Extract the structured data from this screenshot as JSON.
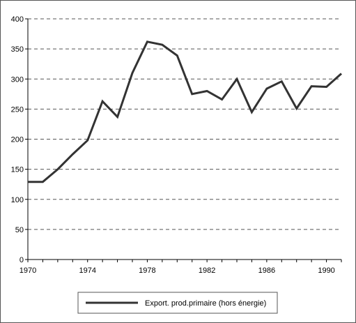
{
  "chart_data": {
    "type": "line",
    "title": "",
    "xlabel": "",
    "ylabel": "",
    "x": [
      1970,
      1971,
      1972,
      1973,
      1974,
      1975,
      1976,
      1977,
      1978,
      1979,
      1980,
      1981,
      1982,
      1983,
      1984,
      1985,
      1986,
      1987,
      1988,
      1989,
      1990,
      1991
    ],
    "series": [
      {
        "name": "Export. prod.primaire (hors énergie)",
        "values": [
          129,
          129,
          150,
          175,
          198,
          263,
          237,
          310,
          362,
          357,
          339,
          275,
          280,
          266,
          300,
          245,
          284,
          296,
          251,
          288,
          287,
          309
        ],
        "color": "#333333"
      }
    ],
    "xlim": [
      1970,
      1991
    ],
    "ylim": [
      0,
      400
    ],
    "x_tick_labels": [
      "1970",
      "1974",
      "1978",
      "1982",
      "1986",
      "1990"
    ],
    "y_tick_labels": [
      "0",
      "50",
      "100",
      "150",
      "200",
      "250",
      "300",
      "350",
      "400"
    ],
    "grid": "horizontal dashed",
    "legend_position": "bottom"
  }
}
